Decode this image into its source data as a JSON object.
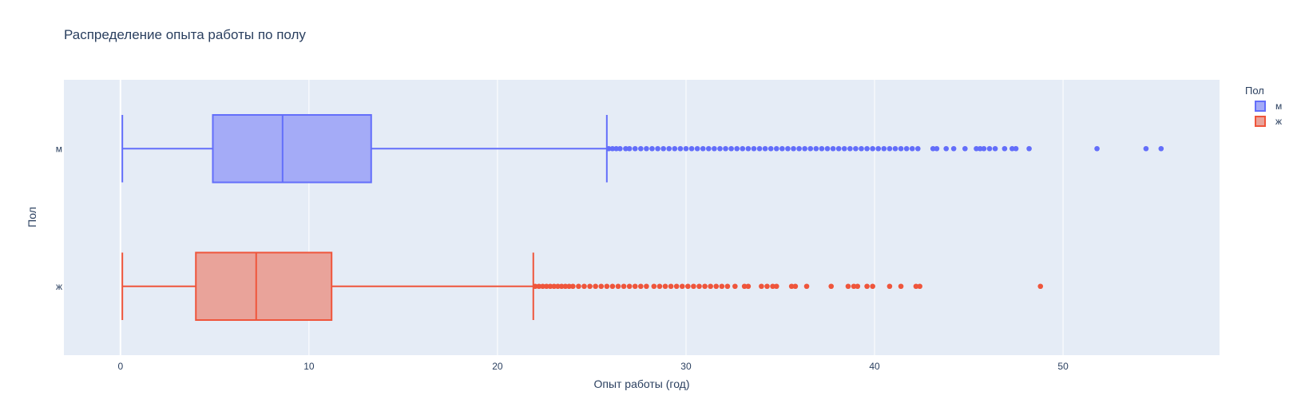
{
  "chart_data": {
    "type": "box",
    "title": "Распределение опыта работы по полу",
    "xlabel": "Опыт работы (год)",
    "ylabel": "Пол",
    "xlim": [
      -3,
      58.3
    ],
    "x_ticks": [
      0,
      10,
      20,
      30,
      40,
      50
    ],
    "categories": [
      "м",
      "ж"
    ],
    "legend": {
      "title": "Пол",
      "placement": "right"
    },
    "grid": true,
    "series": [
      {
        "name": "м",
        "color": "#636efa",
        "fill": "#a4abf7",
        "min": 0.1,
        "q1": 4.9,
        "median": 8.6,
        "q3": 13.3,
        "upper_fence": 25.8,
        "outliers": [
          25.9,
          26.1,
          26.3,
          26.5,
          26.8,
          27.0,
          27.3,
          27.6,
          27.9,
          28.2,
          28.5,
          28.8,
          29.1,
          29.4,
          29.7,
          30.0,
          30.3,
          30.6,
          30.9,
          31.2,
          31.5,
          31.8,
          32.1,
          32.4,
          32.7,
          33.0,
          33.3,
          33.6,
          33.9,
          34.2,
          34.5,
          34.8,
          35.1,
          35.4,
          35.7,
          36.0,
          36.3,
          36.6,
          36.9,
          37.2,
          37.5,
          37.8,
          38.1,
          38.4,
          38.7,
          39.0,
          39.3,
          39.6,
          39.9,
          40.2,
          40.5,
          40.8,
          41.1,
          41.4,
          41.7,
          42.0,
          42.3,
          43.1,
          43.3,
          43.8,
          44.2,
          44.8,
          45.4,
          45.6,
          45.8,
          46.1,
          46.4,
          46.9,
          47.3,
          47.5,
          48.2,
          51.8,
          54.4,
          55.2
        ]
      },
      {
        "name": "ж",
        "color": "#ef553b",
        "fill": "#e9a39a",
        "min": 0.1,
        "q1": 4.0,
        "median": 7.2,
        "q3": 11.2,
        "upper_fence": 21.9,
        "outliers": [
          22.0,
          22.2,
          22.4,
          22.6,
          22.8,
          23.0,
          23.2,
          23.4,
          23.6,
          23.8,
          24.0,
          24.3,
          24.6,
          24.9,
          25.2,
          25.5,
          25.8,
          26.1,
          26.4,
          26.7,
          27.0,
          27.3,
          27.6,
          27.9,
          28.3,
          28.6,
          28.9,
          29.2,
          29.5,
          29.8,
          30.1,
          30.4,
          30.7,
          31.0,
          31.3,
          31.6,
          31.9,
          32.2,
          32.6,
          33.1,
          33.3,
          34.0,
          34.3,
          34.6,
          34.8,
          35.6,
          35.8,
          36.4,
          37.7,
          38.6,
          38.9,
          39.1,
          39.6,
          39.9,
          40.8,
          41.4,
          42.2,
          42.4,
          48.8
        ]
      }
    ]
  }
}
